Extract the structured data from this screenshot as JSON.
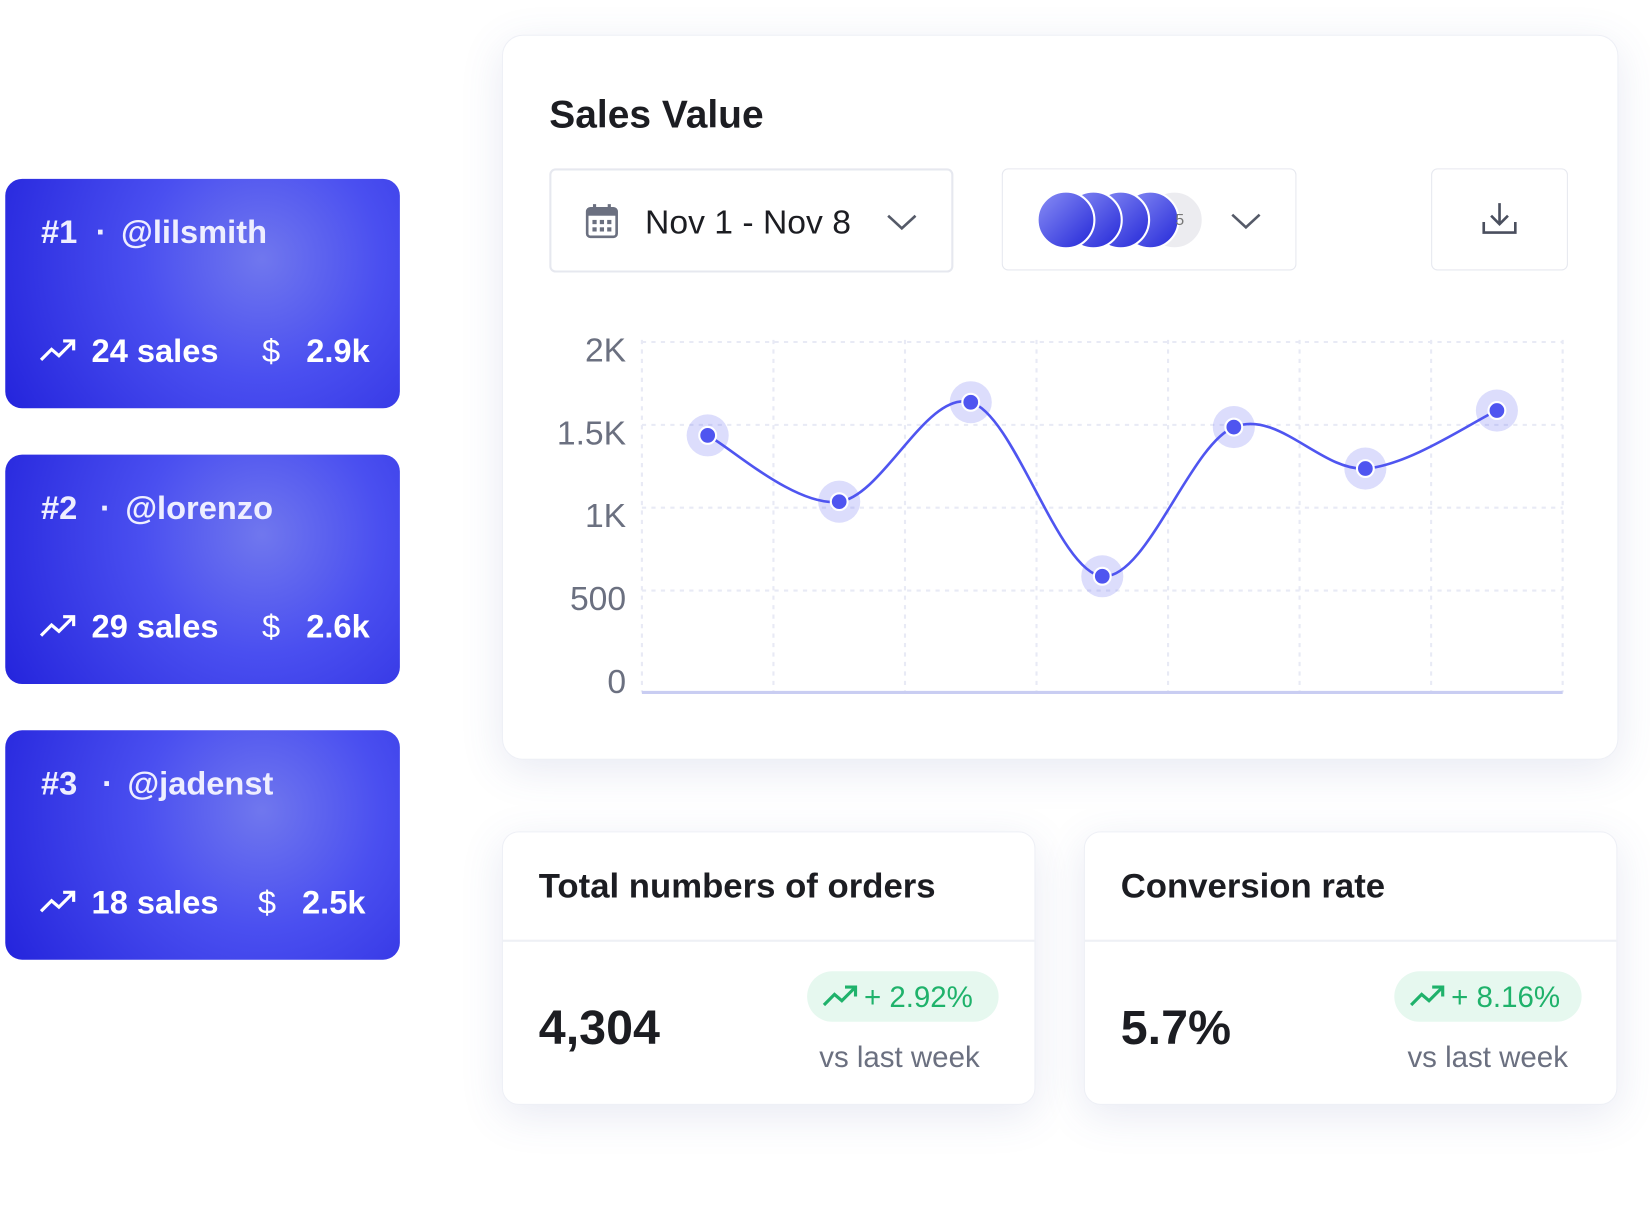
{
  "leaderboard": [
    {
      "rank": "#1",
      "handle": "@lilsmith",
      "sales": "24 sales",
      "currency": "$",
      "amount": "2.9k"
    },
    {
      "rank": "#2",
      "handle": "@lorenzo",
      "sales": "29 sales",
      "currency": "$",
      "amount": "2.6k"
    },
    {
      "rank": "#3",
      "handle": "@jadenst",
      "sales": "18 sales",
      "currency": "$",
      "amount": "2.5k"
    }
  ],
  "chart_data": {
    "type": "line",
    "title": "Sales Value",
    "date_range": "Nov 1 - Nov 8",
    "avatar_more": "5",
    "categories": [
      null,
      null,
      null,
      null,
      null,
      null,
      null
    ],
    "series": [
      {
        "color": "#4f55f0",
        "values": [
          1500,
          1100,
          1700,
          650,
          1550,
          1300,
          1650
        ]
      }
    ],
    "ylim": [
      0,
      2000
    ],
    "yticks": [
      0,
      500,
      {
        "value": 1000,
        "label": "1K"
      },
      {
        "value": 1500,
        "label": "1.5K"
      },
      {
        "value": 2000,
        "label": "2K"
      }
    ],
    "grid": true
  },
  "stats": [
    {
      "title": "Total numbers of orders",
      "value": "4,304",
      "change": "+ 2.92%",
      "note": "vs last week"
    },
    {
      "title": "Conversion rate",
      "value": "5.7%",
      "change": "+ 8.16%",
      "note": "vs last week"
    }
  ]
}
